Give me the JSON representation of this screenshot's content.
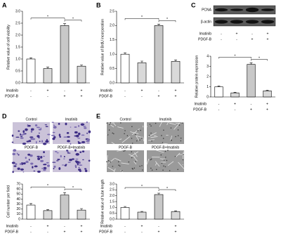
{
  "chart_data": [
    {
      "type": "bar",
      "panel_label": "A",
      "y_label": "Relative value of cell viability",
      "values": [
        1.0,
        0.6,
        2.4,
        0.7
      ],
      "errors": [
        0.05,
        0.06,
        0.08,
        0.05
      ],
      "colors": [
        "#ffffff",
        "#d9d9d9",
        "#c8c8c8",
        "#d9d9d9"
      ],
      "ylim": [
        0,
        3
      ],
      "yticks": [
        {
          "value": 0,
          "label": "0.0"
        },
        {
          "value": 0.5,
          "label": "0.5"
        },
        {
          "value": 1,
          "label": "1.0"
        },
        {
          "value": 1.5,
          "label": "1.5"
        },
        {
          "value": 2,
          "label": "2.0"
        },
        {
          "value": 2.5,
          "label": "2.5"
        },
        {
          "value": 3,
          "label": "3.0"
        }
      ],
      "rows": [
        {
          "name": "Imatinib",
          "signs": [
            "-",
            "+",
            "-",
            "+"
          ]
        },
        {
          "name": "PDGF-B",
          "signs": [
            "-",
            "-",
            "+",
            "+"
          ]
        }
      ],
      "significance": [
        {
          "label": "*",
          "between": [
            0,
            2
          ]
        },
        {
          "label": "*",
          "between": [
            2,
            3
          ]
        }
      ]
    },
    {
      "type": "bar",
      "panel_label": "B",
      "y_label": "Relative value of BrdU incorporation",
      "values": [
        1.0,
        0.7,
        2.0,
        0.75
      ],
      "errors": [
        0.05,
        0.06,
        0.05,
        0.05
      ],
      "colors": [
        "#ffffff",
        "#d9d9d9",
        "#c8c8c8",
        "#d9d9d9"
      ],
      "ylim": [
        0,
        2.5
      ],
      "yticks": [
        {
          "value": 0,
          "label": "0.0"
        },
        {
          "value": 0.5,
          "label": "0.5"
        },
        {
          "value": 1,
          "label": "1.0"
        },
        {
          "value": 1.5,
          "label": "1.5"
        },
        {
          "value": 2,
          "label": "2.0"
        },
        {
          "value": 2.5,
          "label": "2.5"
        }
      ],
      "rows": [
        {
          "name": "Imatinib",
          "signs": [
            "-",
            "+",
            "-",
            "+"
          ]
        },
        {
          "name": "PDGF-B",
          "signs": [
            "-",
            "-",
            "+",
            "+"
          ]
        }
      ],
      "significance": [
        {
          "label": "*",
          "between": [
            0,
            2
          ]
        },
        {
          "label": "*",
          "between": [
            2,
            3
          ]
        }
      ]
    },
    {
      "type": "bar",
      "panel_label": "C",
      "y_label": "Relative protein expression",
      "blot_labels": [
        "PCNA",
        "β-actin"
      ],
      "values": [
        1.0,
        0.4,
        3.2,
        0.6
      ],
      "errors": [
        0.08,
        0.06,
        0.15,
        0.06
      ],
      "colors": [
        "#ffffff",
        "#d9d9d9",
        "#c8c8c8",
        "#d9d9d9"
      ],
      "ylim": [
        0,
        4
      ],
      "yticks": [
        0,
        1,
        2,
        3,
        4
      ],
      "rows": [
        {
          "name": "Imatinib",
          "signs": [
            "-",
            "+",
            "-",
            "+"
          ]
        },
        {
          "name": "PDGF-B",
          "signs": [
            "-",
            "-",
            "+",
            "+"
          ]
        }
      ],
      "significance": [
        {
          "label": "*",
          "between": [
            0,
            2
          ]
        },
        {
          "label": "*",
          "between": [
            2,
            3
          ]
        }
      ]
    },
    {
      "type": "bar",
      "panel_label": "D",
      "y_label": "Cell number per field",
      "image_labels": [
        "Control",
        "Imatinib",
        "PDGF-B",
        "PDGF-B+Imatinib"
      ],
      "values": [
        28,
        17,
        48,
        18
      ],
      "errors": [
        3,
        2,
        5,
        3
      ],
      "colors": [
        "#ffffff",
        "#d9d9d9",
        "#c8c8c8",
        "#d9d9d9"
      ],
      "ylim": [
        0,
        70
      ],
      "yticks": [
        0,
        10,
        20,
        30,
        40,
        50,
        60,
        70
      ],
      "rows": [
        {
          "name": "Imatinib",
          "signs": [
            "-",
            "+",
            "-",
            "+"
          ]
        },
        {
          "name": "PDGF-B",
          "signs": [
            "-",
            "-",
            "+",
            "+"
          ]
        }
      ],
      "significance": [
        {
          "label": "*",
          "between": [
            0,
            2
          ]
        },
        {
          "label": "*",
          "between": [
            2,
            3
          ]
        }
      ]
    },
    {
      "type": "bar",
      "panel_label": "E",
      "y_label": "Relative value of tube length",
      "image_labels": [
        "Control",
        "Imatinib",
        "PDGF-B",
        "PDGF-B+Imatinib"
      ],
      "values": [
        1.0,
        0.6,
        2.1,
        0.65
      ],
      "errors": [
        0.08,
        0.06,
        0.12,
        0.06
      ],
      "colors": [
        "#ffffff",
        "#d9d9d9",
        "#c8c8c8",
        "#d9d9d9"
      ],
      "ylim": [
        0,
        3
      ],
      "yticks": [
        {
          "value": 0,
          "label": "0.0"
        },
        {
          "value": 0.5,
          "label": "0.5"
        },
        {
          "value": 1,
          "label": "1.0"
        },
        {
          "value": 1.5,
          "label": "1.5"
        },
        {
          "value": 2,
          "label": "2.0"
        },
        {
          "value": 2.5,
          "label": "2.5"
        },
        {
          "value": 3,
          "label": "3.0"
        }
      ],
      "rows": [
        {
          "name": "Imatinib",
          "signs": [
            "-",
            "+",
            "-",
            "+"
          ]
        },
        {
          "name": "PDGF-B",
          "signs": [
            "-",
            "-",
            "+",
            "+"
          ]
        }
      ],
      "significance": [
        {
          "label": "*",
          "between": [
            0,
            2
          ]
        },
        {
          "label": "*",
          "between": [
            2,
            3
          ]
        }
      ]
    }
  ]
}
